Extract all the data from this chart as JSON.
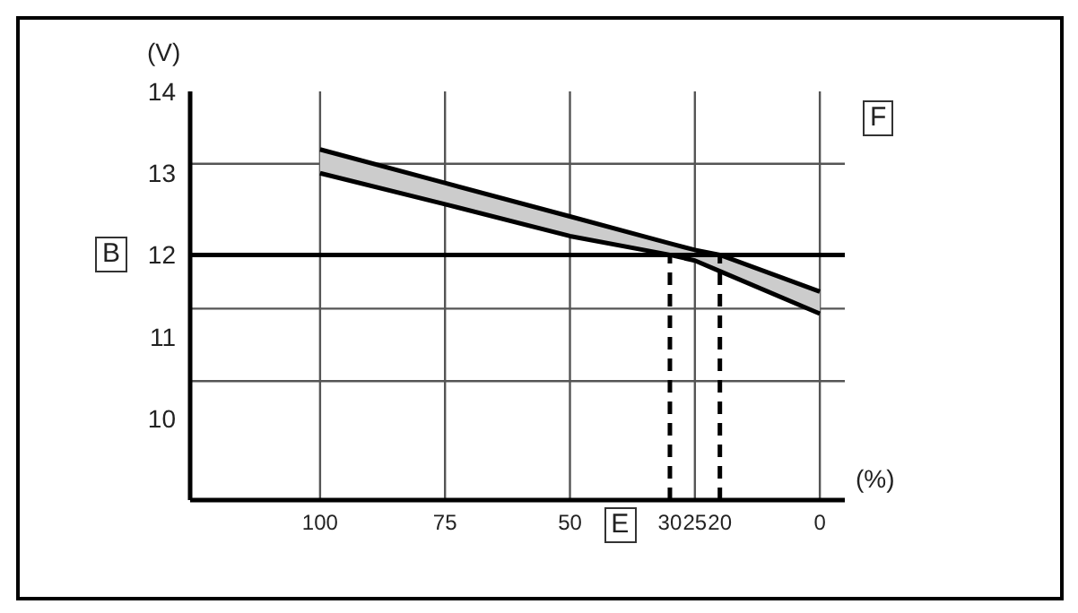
{
  "chart_data": {
    "type": "line",
    "xlabel": "(%)",
    "ylabel": "(V)",
    "x": [
      100,
      75,
      50,
      30,
      25,
      20,
      0
    ],
    "series": [
      {
        "color": "#000000",
        "values": [
          13.29,
          12.88,
          12.47,
          12.14,
          12.06,
          12.0,
          11.55
        ],
        "lower": [
          13.0,
          12.62,
          12.23,
          12.0,
          11.93,
          11.8,
          11.28
        ],
        "upper": [
          13.29,
          12.88,
          12.47,
          12.14,
          12.06,
          12.0,
          11.55
        ]
      },
      {
        "color": "#000000",
        "values": [
          13.0,
          12.62,
          12.23,
          12.0,
          11.93,
          11.8,
          11.28
        ]
      }
    ],
    "xlim": [
      126,
      -5
    ],
    "xticks": [
      100,
      75,
      50,
      30,
      25,
      20,
      0
    ],
    "ylim": [
      9,
      14
    ],
    "yticks": [
      10,
      11,
      12,
      13,
      14
    ],
    "grid": true,
    "ref_lines": [
      {
        "axis": "y",
        "value": 12,
        "color": "#000000",
        "line_style": "solid"
      },
      {
        "axis": "x",
        "value": 30,
        "color": "#000000",
        "line_style": "dashed"
      },
      {
        "axis": "x",
        "value": 20,
        "color": "#000000",
        "line_style": "dashed"
      }
    ],
    "annotations": [
      "B",
      "E",
      "F"
    ]
  }
}
